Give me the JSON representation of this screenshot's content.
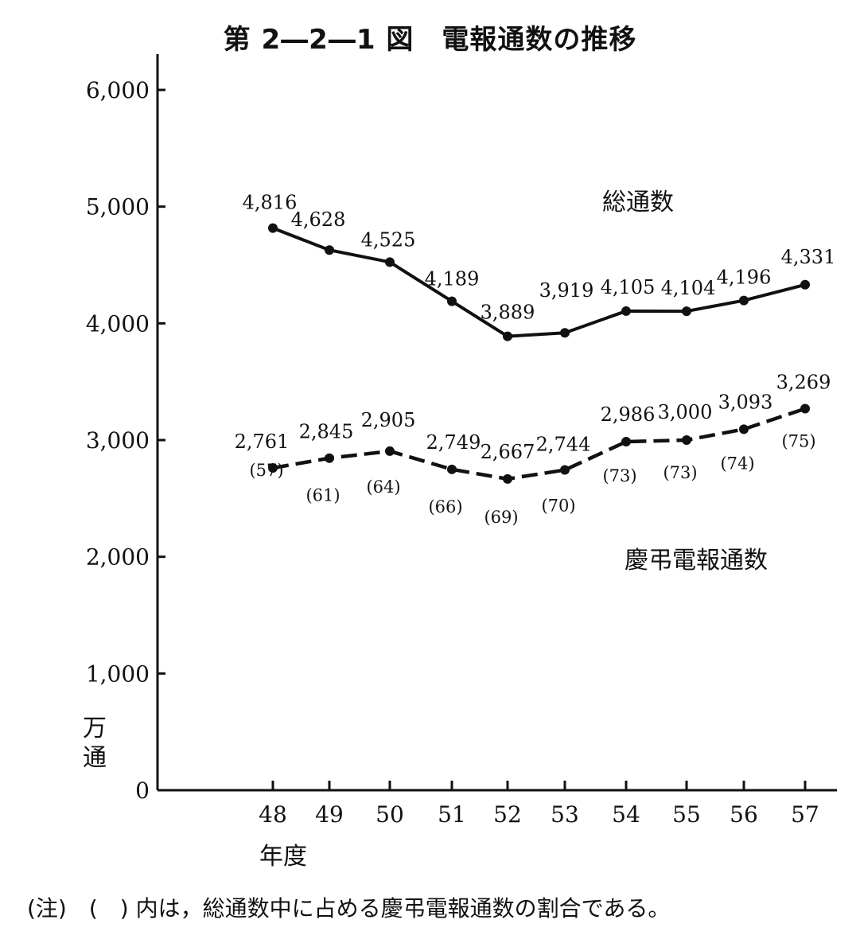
{
  "title": "第 2―2―1 図　電報通数の推移",
  "note": "(注)　(　) 内は，総通数中に占める慶弔電報通数の割合である。",
  "chart_data": {
    "type": "line",
    "title": "第 2―2―1 図　電報通数の推移",
    "xlabel": "年度",
    "ylabel": "万通",
    "ylim": [
      0,
      6000
    ],
    "y_ticks": [
      "0",
      "1,000",
      "2,000",
      "3,000",
      "4,000",
      "5,000",
      "6,000"
    ],
    "x": [
      "48",
      "49",
      "50",
      "51",
      "52",
      "53",
      "54",
      "55",
      "56",
      "57"
    ],
    "grid": false,
    "series": [
      {
        "name": "総通数",
        "style": "solid",
        "values": [
          4816,
          4628,
          4525,
          4189,
          3889,
          3919,
          4105,
          4104,
          4196,
          4331
        ],
        "labels": [
          "4,816",
          "4,628",
          "4,525",
          "4,189",
          "3,889",
          "3,919",
          "4,105",
          "4,104",
          "4,196",
          "4,331"
        ]
      },
      {
        "name": "慶弔電報通数",
        "style": "dashed",
        "values": [
          2761,
          2845,
          2905,
          2749,
          2667,
          2744,
          2986,
          3000,
          3093,
          3269
        ],
        "labels": [
          "2,761",
          "2,845",
          "2,905",
          "2,749",
          "2,667",
          "2,744",
          "2,986",
          "3,000",
          "3,093",
          "3,269"
        ],
        "percent_of_total": [
          "(57)",
          "(61)",
          "(64)",
          "(66)",
          "(69)",
          "(70)",
          "(73)",
          "(73)",
          "(74)",
          "(75)"
        ]
      }
    ],
    "colors": {
      "line": "#111111",
      "background": "#ffffff"
    }
  }
}
